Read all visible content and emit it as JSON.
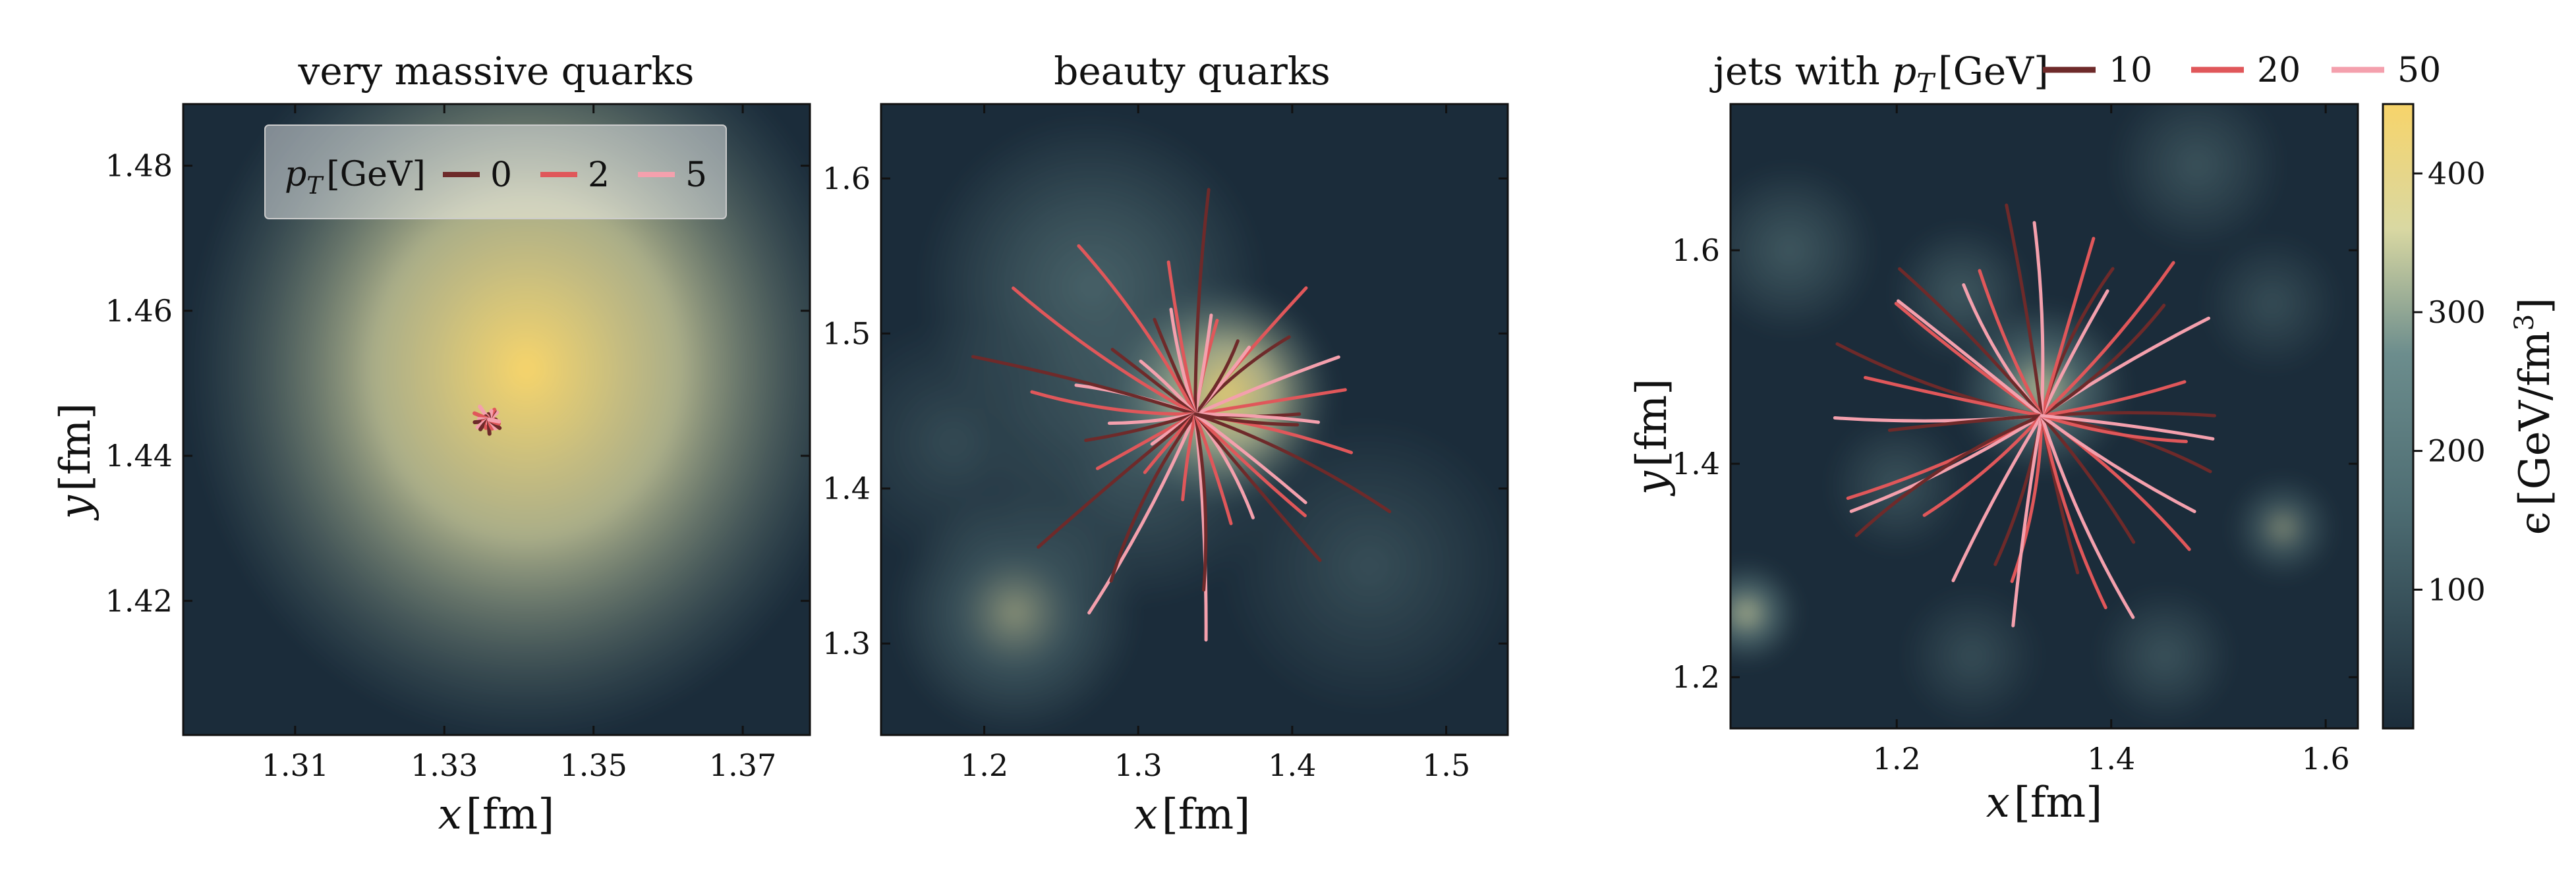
{
  "colors": {
    "background": "#1b2c3a",
    "hot": "#f7d46a",
    "warm": "#d9d8a2",
    "mid": "#6c8d8d",
    "frame": "#111111",
    "track_dark": "#6e2a2a",
    "track_mid": "#e0575a",
    "track_light": "#f4a0ad"
  },
  "chart_data": [
    {
      "type": "heatmap",
      "title": "very massive quarks",
      "xlabel_math": "x",
      "xlabel_unit": "[fm]",
      "ylabel_math": "y",
      "ylabel_unit": "[fm]",
      "xlim": [
        1.295,
        1.379
      ],
      "ylim": [
        1.4015,
        1.4885
      ],
      "xticks": [
        1.31,
        1.33,
        1.35,
        1.37
      ],
      "xtick_labels": [
        "1.31",
        "1.33",
        "1.35",
        "1.37"
      ],
      "yticks": [
        1.42,
        1.44,
        1.46,
        1.48
      ],
      "ytick_labels": [
        "1.42",
        "1.44",
        "1.46",
        "1.48"
      ],
      "hotspots": [
        {
          "x": 1.341,
          "y": 1.452,
          "amplitude": 1.0,
          "width": 0.024
        }
      ],
      "tracks": {
        "origin": [
          1.336,
          1.445
        ],
        "count": 24,
        "length_range": [
          0.0005,
          0.0022
        ],
        "legend": {
          "title_math": "p",
          "title_sub": "T",
          "title_unit": "[GeV]",
          "entries": [
            {
              "label": "0",
              "color_key": "track_dark"
            },
            {
              "label": "2",
              "color_key": "track_mid"
            },
            {
              "label": "5",
              "color_key": "track_light"
            }
          ],
          "placement": "upper-center"
        }
      }
    },
    {
      "type": "heatmap",
      "title": "beauty quarks",
      "xlabel_math": "x",
      "xlabel_unit": "[fm]",
      "xlim": [
        1.133,
        1.54
      ],
      "ylim": [
        1.241,
        1.648
      ],
      "xticks": [
        1.2,
        1.3,
        1.4,
        1.5
      ],
      "xtick_labels": [
        "1.2",
        "1.3",
        "1.4",
        "1.5"
      ],
      "yticks": [
        1.3,
        1.4,
        1.5,
        1.6
      ],
      "ytick_labels": [
        "1.3",
        "1.4",
        "1.5",
        "1.6"
      ],
      "hotspots": [
        {
          "x": 1.355,
          "y": 1.46,
          "amplitude": 0.95,
          "width": 0.045
        },
        {
          "x": 1.27,
          "y": 1.53,
          "amplitude": 0.45,
          "width": 0.07
        },
        {
          "x": 1.22,
          "y": 1.32,
          "amplitude": 0.5,
          "width": 0.05
        },
        {
          "x": 1.3,
          "y": 1.42,
          "amplitude": 0.35,
          "width": 0.06
        },
        {
          "x": 1.45,
          "y": 1.35,
          "amplitude": 0.25,
          "width": 0.06
        },
        {
          "x": 1.18,
          "y": 1.43,
          "amplitude": 0.22,
          "width": 0.05
        }
      ],
      "tracks": {
        "origin": [
          1.337,
          1.448
        ],
        "count": 40,
        "length_range": [
          0.03,
          0.15
        ]
      }
    },
    {
      "type": "heatmap",
      "title_prefix": "jets with ",
      "title_math": "p",
      "title_sub": "T",
      "title_unit": "[GeV]",
      "xlabel_math": "x",
      "xlabel_unit": "[fm]",
      "ylabel_math": "y",
      "ylabel_unit": "[fm]",
      "xlim": [
        1.045,
        1.63
      ],
      "ylim": [
        1.152,
        1.737
      ],
      "xticks": [
        1.2,
        1.4,
        1.6
      ],
      "xtick_labels": [
        "1.2",
        "1.4",
        "1.6"
      ],
      "yticks": [
        1.2,
        1.4,
        1.6
      ],
      "ytick_labels": [
        "1.2",
        "1.4",
        "1.6"
      ],
      "hotspots": [
        {
          "x": 1.335,
          "y": 1.47,
          "amplitude": 0.75,
          "width": 0.05
        },
        {
          "x": 1.06,
          "y": 1.26,
          "amplitude": 0.75,
          "width": 0.03
        },
        {
          "x": 1.56,
          "y": 1.34,
          "amplitude": 0.5,
          "width": 0.03
        },
        {
          "x": 1.26,
          "y": 1.56,
          "amplitude": 0.35,
          "width": 0.04
        },
        {
          "x": 1.1,
          "y": 1.6,
          "amplitude": 0.35,
          "width": 0.05
        },
        {
          "x": 1.48,
          "y": 1.68,
          "amplitude": 0.3,
          "width": 0.05
        },
        {
          "x": 1.45,
          "y": 1.22,
          "amplitude": 0.3,
          "width": 0.04
        },
        {
          "x": 1.2,
          "y": 1.38,
          "amplitude": 0.3,
          "width": 0.04
        },
        {
          "x": 1.55,
          "y": 1.55,
          "amplitude": 0.25,
          "width": 0.04
        },
        {
          "x": 1.27,
          "y": 1.22,
          "amplitude": 0.25,
          "width": 0.04
        }
      ],
      "tracks": {
        "origin": [
          1.335,
          1.445
        ],
        "count": 36,
        "length_range": [
          0.13,
          0.21
        ],
        "legend": {
          "entries": [
            {
              "label": "10",
              "color_key": "track_dark"
            },
            {
              "label": "20",
              "color_key": "track_mid"
            },
            {
              "label": "50",
              "color_key": "track_light"
            }
          ],
          "placement": "above-plot"
        }
      }
    }
  ],
  "colorbar": {
    "label_prefix": "ϵ",
    "label_unit": "[GeV/fm",
    "label_sup": "3",
    "label_close": "]",
    "range": [
      0,
      450
    ],
    "ticks": [
      100,
      200,
      300,
      400
    ],
    "tick_labels": [
      "100",
      "200",
      "300",
      "400"
    ]
  }
}
